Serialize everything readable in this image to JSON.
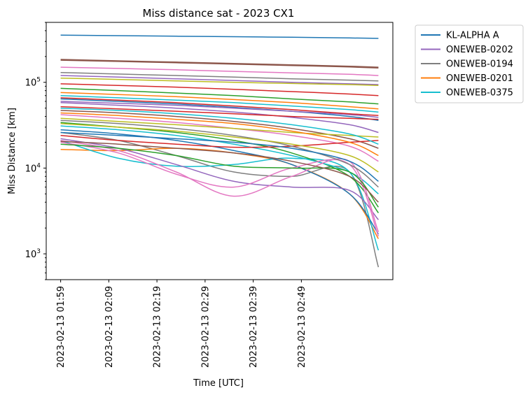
{
  "chart_data": {
    "type": "line",
    "title": "Miss distance sat - 2023 CX1",
    "xlabel": "Time [UTC]",
    "ylabel": "Miss Distance [km]",
    "yscale": "log",
    "ylim": [
      500,
      500000
    ],
    "xlim": [
      "2023-02-13 01:56",
      "2023-02-13 03:08"
    ],
    "x_tick_labels": [
      "2023-02-13 01:59",
      "2023-02-13 02:09",
      "2023-02-13 02:19",
      "2023-02-13 02:29",
      "2023-02-13 02:39",
      "2023-02-13 02:49"
    ],
    "x": [
      "2023-02-13 01:59",
      "2023-02-13 02:11",
      "2023-02-13 02:23",
      "2023-02-13 02:35",
      "2023-02-13 02:47",
      "2023-02-13 02:59",
      "2023-02-13 03:05"
    ],
    "y_ticks": [
      1000,
      10000,
      100000
    ],
    "y_tick_labels": [
      "10",
      "10",
      "10"
    ],
    "y_tick_exponents": [
      "3",
      "4",
      "5"
    ],
    "legend_position": "outside upper right",
    "series": [
      {
        "name": "KL-ALPHA A",
        "color": "#1f77b4",
        "values": [
          355000,
          350000,
          345000,
          340000,
          335000,
          329000,
          325000
        ]
      },
      {
        "name": "ONEWEB-0202",
        "color": "#9467bd",
        "values": [
          120000,
          115000,
          110000,
          105000,
          100000,
          96000,
          94000
        ]
      },
      {
        "name": "ONEWEB-0194",
        "color": "#7f7f7f",
        "values": [
          26000,
          21000,
          14000,
          9000,
          8000,
          9000,
          700
        ]
      },
      {
        "name": "ONEWEB-0201",
        "color": "#ff7f0e",
        "values": [
          16500,
          16000,
          17000,
          15000,
          11000,
          5000,
          1500
        ]
      },
      {
        "name": "ONEWEB-0375",
        "color": "#17becf",
        "values": [
          21000,
          13000,
          10500,
          11000,
          13000,
          9000,
          1100
        ]
      },
      {
        "color": "#8c564b",
        "values": [
          185000,
          178000,
          172000,
          166000,
          160000,
          154000,
          150000
        ]
      },
      {
        "color": "#8c564b",
        "values": [
          181000,
          175000,
          169000,
          163000,
          157000,
          151000,
          147000
        ]
      },
      {
        "color": "#e377c2",
        "values": [
          150000,
          145000,
          140000,
          134000,
          129000,
          124000,
          120000
        ]
      },
      {
        "color": "#7f7f7f",
        "values": [
          130000,
          125000,
          120000,
          115000,
          110000,
          106000,
          104000
        ]
      },
      {
        "color": "#bcbd22",
        "values": [
          112000,
          108000,
          104000,
          100000,
          97000,
          94000,
          92000
        ]
      },
      {
        "color": "#d62728",
        "values": [
          96000,
          92000,
          88000,
          83000,
          78000,
          73000,
          70000
        ]
      },
      {
        "color": "#2ca02c",
        "values": [
          85000,
          80000,
          75000,
          70000,
          64000,
          59000,
          56000
        ]
      },
      {
        "color": "#ff7f0e",
        "values": [
          76000,
          72000,
          68000,
          63000,
          58000,
          52000,
          49000
        ]
      },
      {
        "color": "#17becf",
        "values": [
          70000,
          66000,
          62000,
          58000,
          53000,
          48000,
          45000
        ]
      },
      {
        "color": "#1f77b4",
        "values": [
          64000,
          60000,
          56000,
          51000,
          46000,
          40000,
          36000
        ]
      },
      {
        "color": "#9467bd",
        "values": [
          58000,
          54000,
          50000,
          45000,
          39000,
          32000,
          26000
        ]
      },
      {
        "color": "#d62728",
        "values": [
          52000,
          49000,
          46000,
          43000,
          40000,
          38000,
          37000
        ]
      },
      {
        "color": "#8c564b",
        "values": [
          47000,
          44000,
          40000,
          35000,
          29000,
          22000,
          17000
        ]
      },
      {
        "color": "#e377c2",
        "values": [
          42000,
          38000,
          34000,
          29000,
          24000,
          18000,
          12000
        ]
      },
      {
        "color": "#bcbd22",
        "values": [
          38000,
          35000,
          32000,
          29000,
          26000,
          24000,
          23000
        ]
      },
      {
        "color": "#2ca02c",
        "values": [
          34000,
          30000,
          26000,
          21000,
          15000,
          8000,
          3000
        ]
      },
      {
        "color": "#17becf",
        "values": [
          31000,
          28000,
          24000,
          19000,
          14000,
          9000,
          5000
        ]
      },
      {
        "color": "#1f77b4",
        "values": [
          28000,
          25000,
          21000,
          16000,
          11000,
          5000,
          1700
        ]
      },
      {
        "color": "#d62728",
        "values": [
          24000,
          21000,
          19000,
          17500,
          18000,
          20000,
          21000
        ]
      },
      {
        "color": "#9467bd",
        "values": [
          22000,
          17000,
          11000,
          7000,
          6000,
          5500,
          2500
        ]
      },
      {
        "color": "#e377c2",
        "values": [
          21000,
          16000,
          9000,
          4700,
          8000,
          12000,
          1800
        ]
      },
      {
        "color": "#e377c2",
        "values": [
          20000,
          15000,
          8500,
          6000,
          10000,
          11000,
          1600
        ]
      },
      {
        "color": "#2ca02c",
        "values": [
          19000,
          17000,
          14000,
          10500,
          10000,
          9000,
          3500
        ]
      },
      {
        "color": "#8c564b",
        "values": [
          20500,
          19000,
          17000,
          15000,
          12000,
          8000,
          4000
        ]
      },
      {
        "color": "#ff7f0e",
        "values": [
          44000,
          41000,
          37000,
          33000,
          27000,
          20000,
          14000
        ]
      },
      {
        "color": "#7f7f7f",
        "values": [
          36000,
          33000,
          29000,
          24000,
          18000,
          11000,
          6000
        ]
      },
      {
        "color": "#bcbd22",
        "values": [
          33000,
          30000,
          27000,
          23000,
          19000,
          14000,
          9000
        ]
      },
      {
        "color": "#1f77b4",
        "values": [
          26000,
          24000,
          22000,
          20000,
          17000,
          12000,
          7000
        ]
      },
      {
        "color": "#9467bd",
        "values": [
          60000,
          57000,
          54000,
          50000,
          46000,
          42000,
          39000
        ]
      },
      {
        "color": "#17becf",
        "values": [
          50000,
          47000,
          43000,
          38000,
          32000,
          25000,
          19000
        ]
      },
      {
        "color": "#d62728",
        "values": [
          66000,
          62000,
          58000,
          53000,
          48000,
          43000,
          41000
        ]
      }
    ]
  }
}
